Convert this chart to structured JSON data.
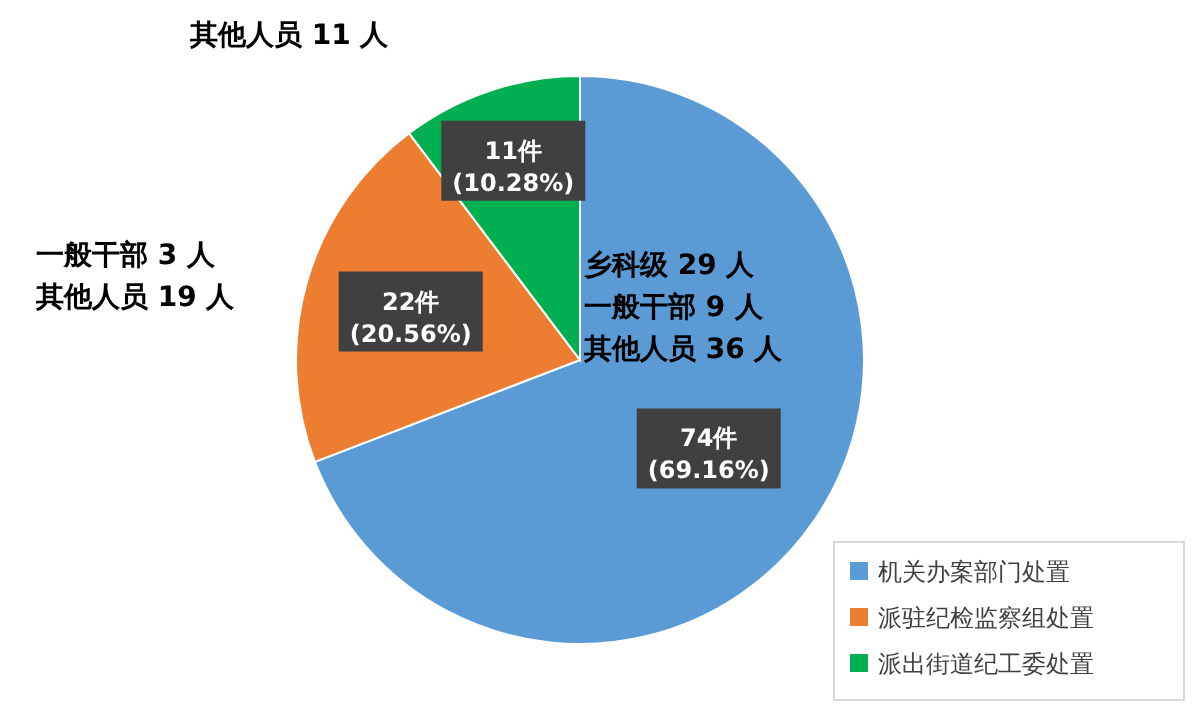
{
  "chart_data": {
    "type": "pie",
    "categories": [
      "机关办案部门处置",
      "派驻纪检监察组处置",
      "派出街道纪工委处置"
    ],
    "values": [
      74,
      22,
      11
    ],
    "colors": [
      "#5b9bd5",
      "#ed7d31",
      "#00b050"
    ],
    "value_labels": [
      "74件\n(69.16%)",
      "22件\n(20.56%)",
      "11件\n(10.28%)"
    ],
    "annotations": [
      "乡科级 29 人",
      "一般干部 9 人",
      "其他人员 36 人",
      "一般干部 3 人",
      "其他人员 19 人",
      "其他人员 11 人"
    ],
    "legend": "bottom right"
  }
}
